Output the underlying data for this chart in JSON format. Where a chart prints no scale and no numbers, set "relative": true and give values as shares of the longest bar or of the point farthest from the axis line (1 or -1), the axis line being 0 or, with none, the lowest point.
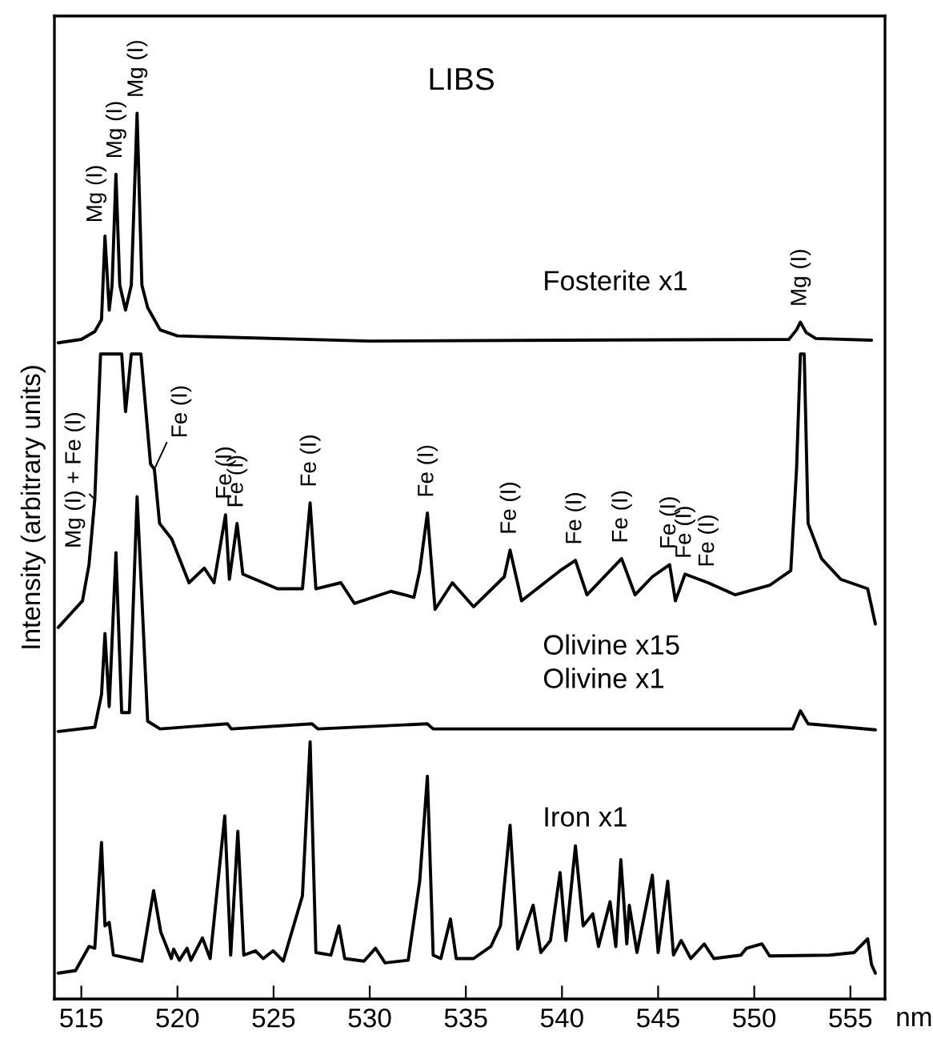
{
  "chart_data": {
    "type": "line",
    "title": "LIBS",
    "xlabel": "nm",
    "ylabel": "Intensity (arbitrary units)",
    "relative": true,
    "xlim": [
      513.6,
      556.8
    ],
    "xticks": [
      515,
      520,
      525,
      530,
      535,
      540,
      545,
      550,
      555
    ],
    "tick_labels": "x",
    "grid": false,
    "legend": false,
    "marker": "none",
    "line_style": "solid",
    "series": [
      {
        "name": "Fosterite x1",
        "color": "#000000",
        "x": [
          513.8,
          515.0,
          515.7,
          516.05,
          516.23,
          516.45,
          516.6,
          516.8,
          517.0,
          517.3,
          517.6,
          517.9,
          518.15,
          518.45,
          519.1,
          520.0,
          530.0,
          540.0,
          551.8,
          552.2,
          552.4,
          552.7,
          553.2,
          556.1
        ],
        "values": [
          0.733,
          0.737,
          0.746,
          0.76,
          0.857,
          0.771,
          0.8,
          0.929,
          0.8,
          0.771,
          0.8,
          1.0,
          0.8,
          0.774,
          0.748,
          0.741,
          0.735,
          0.736,
          0.737,
          0.748,
          0.757,
          0.745,
          0.738,
          0.736
        ]
      },
      {
        "name": "Olivine x15",
        "color": "#000000",
        "x": [
          513.8,
          515.06,
          515.4,
          515.7,
          516.0,
          517.1,
          517.3,
          517.6,
          518.1,
          518.6,
          518.8,
          519.07,
          519.7,
          520.6,
          521.4,
          521.9,
          522.5,
          522.7,
          523.1,
          523.4,
          525.2,
          526.5,
          526.9,
          527.2,
          528.5,
          529.2,
          531.1,
          532.3,
          532.6,
          533.0,
          533.4,
          534.3,
          535.4,
          537.0,
          537.3,
          537.9,
          539.9,
          540.7,
          541.3,
          543.1,
          543.8,
          544.7,
          545.6,
          545.9,
          546.4,
          547.6,
          549.0,
          550.8,
          551.9,
          552.2,
          552.4,
          552.6,
          552.8,
          553.5,
          554.5,
          555.9,
          556.3
        ],
        "values": [
          0.402,
          0.433,
          0.475,
          0.551,
          0.72,
          0.72,
          0.653,
          0.72,
          0.72,
          0.592,
          0.586,
          0.523,
          0.505,
          0.454,
          0.471,
          0.454,
          0.533,
          0.458,
          0.523,
          0.464,
          0.447,
          0.447,
          0.547,
          0.447,
          0.454,
          0.43,
          0.444,
          0.437,
          0.468,
          0.535,
          0.423,
          0.454,
          0.426,
          0.461,
          0.492,
          0.433,
          0.468,
          0.48,
          0.44,
          0.482,
          0.44,
          0.461,
          0.475,
          0.433,
          0.464,
          0.454,
          0.44,
          0.451,
          0.468,
          0.586,
          0.72,
          0.72,
          0.523,
          0.482,
          0.458,
          0.447,
          0.406
        ]
      },
      {
        "name": "Olivine x1",
        "color": "#000000",
        "x": [
          513.8,
          515.7,
          516.05,
          516.23,
          516.45,
          516.8,
          517.1,
          517.5,
          517.9,
          518.45,
          519.1,
          522.6,
          522.8,
          527.0,
          527.3,
          533.0,
          533.3,
          552.0,
          552.4,
          552.8,
          556.3
        ],
        "values": [
          0.281,
          0.286,
          0.324,
          0.395,
          0.31,
          0.489,
          0.303,
          0.303,
          0.554,
          0.293,
          0.284,
          0.29,
          0.284,
          0.29,
          0.284,
          0.29,
          0.284,
          0.284,
          0.305,
          0.29,
          0.283
        ]
      },
      {
        "name": "Iron x1",
        "color": "#000000",
        "x": [
          513.8,
          514.7,
          515.4,
          515.7,
          516.05,
          516.23,
          516.45,
          516.67,
          518.15,
          518.76,
          519.13,
          519.68,
          519.8,
          520.1,
          520.5,
          520.7,
          521.3,
          521.7,
          522.46,
          522.77,
          523.14,
          523.45,
          524.06,
          524.46,
          524.98,
          525.5,
          526.5,
          526.9,
          527.2,
          527.98,
          528.4,
          528.7,
          529.7,
          530.3,
          530.8,
          532.0,
          532.6,
          533.0,
          533.3,
          533.7,
          534.2,
          534.5,
          535.4,
          536.3,
          536.8,
          537.3,
          537.7,
          538.5,
          538.9,
          539.4,
          539.9,
          540.2,
          540.7,
          541.1,
          541.6,
          541.9,
          542.5,
          542.8,
          543.06,
          543.37,
          543.5,
          543.9,
          544.7,
          545.0,
          545.5,
          545.8,
          546.2,
          546.7,
          547.4,
          547.9,
          549.3,
          549.6,
          550.4,
          550.8,
          553.9,
          555.2,
          555.9,
          556.1,
          556.3
        ],
        "values": [
          0.0,
          0.003,
          0.031,
          0.029,
          0.152,
          0.055,
          0.059,
          0.021,
          0.014,
          0.096,
          0.048,
          0.017,
          0.028,
          0.015,
          0.029,
          0.015,
          0.041,
          0.017,
          0.183,
          0.021,
          0.165,
          0.021,
          0.026,
          0.017,
          0.026,
          0.014,
          0.09,
          0.269,
          0.024,
          0.021,
          0.055,
          0.017,
          0.014,
          0.029,
          0.012,
          0.015,
          0.107,
          0.229,
          0.021,
          0.017,
          0.063,
          0.017,
          0.017,
          0.031,
          0.055,
          0.172,
          0.028,
          0.079,
          0.024,
          0.038,
          0.117,
          0.038,
          0.148,
          0.055,
          0.069,
          0.031,
          0.083,
          0.031,
          0.132,
          0.034,
          0.079,
          0.024,
          0.114,
          0.024,
          0.107,
          0.021,
          0.038,
          0.017,
          0.034,
          0.017,
          0.021,
          0.029,
          0.034,
          0.02,
          0.021,
          0.024,
          0.04,
          0.01,
          0.0
        ]
      }
    ],
    "annotations": [
      {
        "text": "Mg (I)",
        "x": 516.23,
        "y": 0.857
      },
      {
        "text": "Mg (I)",
        "x": 516.8,
        "y": 0.929
      },
      {
        "text": "Mg (I)",
        "x": 517.9,
        "y": 1.0
      },
      {
        "text": "Mg (I)",
        "x": 552.4,
        "y": 0.757
      },
      {
        "text": "Mg (I) + Fe (I)",
        "x": 515.7,
        "y": 0.551
      },
      {
        "text": "Fe (I)",
        "x": 518.8,
        "y": 0.586
      },
      {
        "text": "Fe (I)",
        "x": 522.5,
        "y": 0.533
      },
      {
        "text": "Fe (I)",
        "x": 523.1,
        "y": 0.523
      },
      {
        "text": "Fe (I)",
        "x": 526.9,
        "y": 0.547
      },
      {
        "text": "Fe (I)",
        "x": 533.0,
        "y": 0.535
      },
      {
        "text": "Fe (I)",
        "x": 537.3,
        "y": 0.492
      },
      {
        "text": "Fe (I)",
        "x": 540.7,
        "y": 0.48
      },
      {
        "text": "Fe (I)",
        "x": 543.1,
        "y": 0.482
      },
      {
        "text": "Fe (I)",
        "x": 545.6,
        "y": 0.475
      },
      {
        "text": "Fe (I)",
        "x": 546.4,
        "y": 0.464
      },
      {
        "text": "Fe (I)",
        "x": 547.6,
        "y": 0.454
      }
    ]
  }
}
